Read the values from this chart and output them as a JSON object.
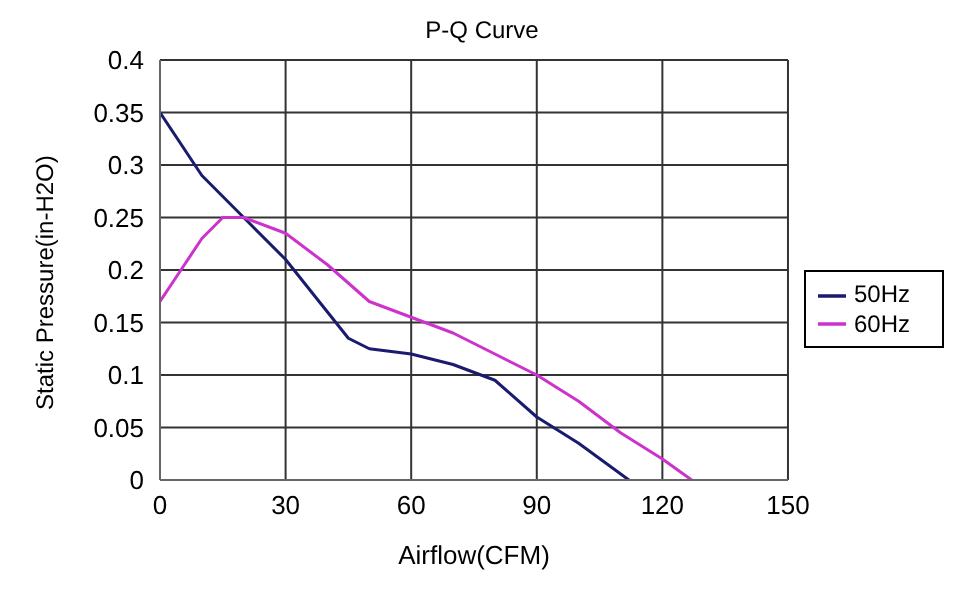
{
  "chart_data": {
    "type": "line",
    "title": "P-Q Curve",
    "xlabel": "Airflow(CFM)",
    "ylabel": "Static Pressure(in-H2O)",
    "xlim": [
      0,
      150
    ],
    "xticks": [
      0,
      30,
      60,
      90,
      120,
      150
    ],
    "ylim": [
      0,
      0.4
    ],
    "yticks": [
      0,
      0.05,
      0.1,
      0.15,
      0.2,
      0.25,
      0.3,
      0.35,
      0.4
    ],
    "grid": true,
    "legend": "right",
    "marker": "none",
    "line_style": "solid",
    "series": [
      {
        "name": "50Hz",
        "color": "#1a1a6e",
        "x": [
          0,
          10,
          20,
          30,
          40,
          45,
          50,
          60,
          70,
          80,
          90,
          100,
          112
        ],
        "values": [
          0.35,
          0.29,
          0.25,
          0.21,
          0.16,
          0.135,
          0.125,
          0.12,
          0.11,
          0.095,
          0.06,
          0.035,
          0
        ]
      },
      {
        "name": "60Hz",
        "color": "#cc33cc",
        "x": [
          0,
          5,
          10,
          15,
          20,
          30,
          40,
          50,
          60,
          70,
          80,
          90,
          100,
          110,
          120,
          127
        ],
        "values": [
          0.17,
          0.2,
          0.23,
          0.25,
          0.25,
          0.235,
          0.205,
          0.17,
          0.155,
          0.14,
          0.12,
          0.1,
          0.075,
          0.045,
          0.02,
          0
        ]
      }
    ]
  }
}
